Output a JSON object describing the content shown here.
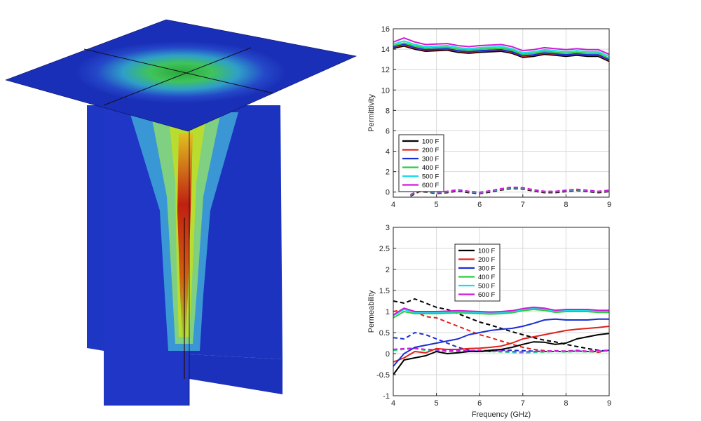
{
  "chart_data": [
    {
      "type": "line",
      "title": "",
      "xlabel": "",
      "ylabel": "Permittivity",
      "xlim": [
        4,
        9
      ],
      "ylim": [
        -0.5,
        16
      ],
      "xticks": [
        4,
        5,
        6,
        7,
        8,
        9
      ],
      "yticks": [
        0,
        2,
        4,
        6,
        8,
        10,
        12,
        14,
        16
      ],
      "grid": true,
      "legend_position": "bottom-left",
      "x": [
        4.0,
        4.25,
        4.5,
        4.75,
        5.0,
        5.25,
        5.5,
        5.75,
        6.0,
        6.25,
        6.5,
        6.75,
        7.0,
        7.25,
        7.5,
        7.75,
        8.0,
        8.25,
        8.5,
        8.75,
        9.0
      ],
      "series": [
        {
          "name": "100 F",
          "color": "#000000",
          "style": "solid",
          "values": [
            14.1,
            14.3,
            14.0,
            13.8,
            13.85,
            13.9,
            13.7,
            13.6,
            13.7,
            13.75,
            13.8,
            13.6,
            13.2,
            13.3,
            13.5,
            13.4,
            13.3,
            13.4,
            13.3,
            13.3,
            12.8
          ]
        },
        {
          "name": "200 F",
          "color": "#e0201b",
          "style": "solid",
          "values": [
            14.2,
            14.4,
            14.1,
            13.9,
            13.95,
            14.0,
            13.8,
            13.7,
            13.8,
            13.85,
            13.9,
            13.7,
            13.3,
            13.4,
            13.6,
            13.5,
            13.4,
            13.5,
            13.4,
            13.4,
            12.9
          ]
        },
        {
          "name": "300 F",
          "color": "#1a2fd1",
          "style": "solid",
          "values": [
            14.25,
            14.5,
            14.15,
            13.95,
            14.0,
            14.05,
            13.85,
            13.75,
            13.85,
            13.9,
            13.95,
            13.75,
            13.35,
            13.45,
            13.65,
            13.55,
            13.45,
            13.55,
            13.45,
            13.45,
            12.95
          ]
        },
        {
          "name": "400 F",
          "color": "#2ecc40",
          "style": "solid",
          "values": [
            14.35,
            14.6,
            14.3,
            14.1,
            14.15,
            14.2,
            14.0,
            13.9,
            14.0,
            14.05,
            14.1,
            13.9,
            13.5,
            13.6,
            13.8,
            13.7,
            13.6,
            13.7,
            13.6,
            13.6,
            13.1
          ]
        },
        {
          "name": "500 F",
          "color": "#14e0e8",
          "style": "solid",
          "values": [
            14.5,
            14.8,
            14.45,
            14.25,
            14.3,
            14.35,
            14.15,
            14.05,
            14.15,
            14.2,
            14.25,
            14.05,
            13.65,
            13.75,
            13.95,
            13.85,
            13.75,
            13.85,
            13.75,
            13.75,
            13.3
          ]
        },
        {
          "name": "600 F",
          "color": "#d11ad6",
          "style": "solid",
          "values": [
            14.7,
            15.1,
            14.7,
            14.45,
            14.5,
            14.55,
            14.35,
            14.25,
            14.35,
            14.4,
            14.45,
            14.25,
            13.85,
            13.95,
            14.15,
            14.05,
            13.95,
            14.05,
            13.95,
            13.95,
            13.5
          ]
        }
      ],
      "imaginary_x": [
        4.4,
        4.6,
        4.8,
        5.0,
        5.25,
        5.5,
        5.75,
        6.0,
        6.25,
        6.5,
        6.75,
        7.0,
        7.25,
        7.5,
        7.75,
        8.0,
        8.25,
        8.5,
        8.75,
        9.0
      ],
      "imaginary_series": [
        {
          "name": "100 F",
          "color": "#000000",
          "style": "dashed",
          "values": [
            -0.4,
            0.05,
            0.0,
            -0.15,
            -0.05,
            0.1,
            -0.05,
            -0.15,
            0.0,
            0.2,
            0.35,
            0.3,
            0.1,
            -0.05,
            -0.05,
            0.05,
            0.15,
            0.05,
            -0.05,
            0.05
          ]
        },
        {
          "name": "200 F",
          "color": "#e0201b",
          "style": "dashed",
          "values": [
            -0.35,
            0.1,
            0.05,
            -0.1,
            0.0,
            0.15,
            0.0,
            -0.1,
            0.05,
            0.25,
            0.4,
            0.35,
            0.15,
            0.0,
            0.0,
            0.1,
            0.2,
            0.1,
            0.0,
            0.1
          ]
        },
        {
          "name": "300 F",
          "color": "#1a2fd1",
          "style": "dashed",
          "values": [
            -0.3,
            0.12,
            0.06,
            -0.08,
            0.02,
            0.17,
            0.02,
            -0.08,
            0.07,
            0.27,
            0.42,
            0.37,
            0.17,
            0.02,
            0.02,
            0.12,
            0.22,
            0.12,
            0.02,
            0.12
          ]
        },
        {
          "name": "400 F",
          "color": "#2ecc40",
          "style": "dashed",
          "values": [
            -0.3,
            0.15,
            0.08,
            -0.06,
            0.04,
            0.19,
            0.04,
            -0.06,
            0.09,
            0.29,
            0.44,
            0.39,
            0.19,
            0.04,
            0.04,
            0.14,
            0.24,
            0.14,
            0.04,
            0.14
          ]
        },
        {
          "name": "500 F",
          "color": "#14e0e8",
          "style": "dashed",
          "values": [
            -0.25,
            0.16,
            0.1,
            -0.04,
            0.06,
            0.21,
            0.06,
            -0.04,
            0.11,
            0.31,
            0.46,
            0.41,
            0.21,
            0.06,
            0.06,
            0.16,
            0.26,
            0.16,
            0.06,
            0.16
          ]
        },
        {
          "name": "600 F",
          "color": "#d11ad6",
          "style": "dashed",
          "values": [
            -0.25,
            0.18,
            0.12,
            -0.02,
            0.08,
            0.23,
            0.08,
            -0.02,
            0.13,
            0.33,
            0.48,
            0.43,
            0.23,
            0.08,
            0.08,
            0.18,
            0.28,
            0.18,
            0.08,
            0.18
          ]
        }
      ]
    },
    {
      "type": "line",
      "title": "",
      "xlabel": "Frequency (GHz)",
      "ylabel": "Permeability",
      "xlim": [
        4,
        9
      ],
      "ylim": [
        -1,
        3
      ],
      "xticks": [
        4,
        5,
        6,
        7,
        8,
        9
      ],
      "yticks": [
        -1,
        -0.5,
        0,
        0.5,
        1,
        1.5,
        2,
        2.5,
        3
      ],
      "grid": true,
      "legend_position": "top-center",
      "x": [
        4.0,
        4.25,
        4.5,
        4.75,
        5.0,
        5.25,
        5.5,
        5.75,
        6.0,
        6.25,
        6.5,
        6.75,
        7.0,
        7.25,
        7.5,
        7.75,
        8.0,
        8.25,
        8.5,
        8.75,
        9.0
      ],
      "series": [
        {
          "name": "100 F",
          "color": "#000000",
          "style": "solid",
          "values": [
            -0.5,
            -0.15,
            -0.1,
            -0.05,
            0.05,
            0.0,
            0.02,
            0.05,
            0.05,
            0.08,
            0.1,
            0.15,
            0.22,
            0.28,
            0.27,
            0.22,
            0.25,
            0.35,
            0.4,
            0.45,
            0.48
          ]
        },
        {
          "name": "200 F",
          "color": "#e0201b",
          "style": "solid",
          "values": [
            -0.2,
            -0.1,
            0.05,
            0.02,
            0.12,
            0.1,
            0.1,
            0.12,
            0.13,
            0.15,
            0.18,
            0.25,
            0.35,
            0.4,
            0.45,
            0.5,
            0.55,
            0.58,
            0.6,
            0.62,
            0.65
          ]
        },
        {
          "name": "300 F",
          "color": "#1a2fd1",
          "style": "solid",
          "values": [
            -0.3,
            0.0,
            0.15,
            0.2,
            0.25,
            0.3,
            0.35,
            0.45,
            0.5,
            0.55,
            0.58,
            0.6,
            0.65,
            0.72,
            0.8,
            0.82,
            0.8,
            0.8,
            0.8,
            0.82,
            0.82
          ]
        },
        {
          "name": "400 F",
          "color": "#2ecc40",
          "style": "solid",
          "values": [
            0.85,
            1.0,
            0.95,
            0.95,
            0.95,
            0.96,
            0.97,
            0.96,
            0.95,
            0.94,
            0.95,
            0.97,
            1.02,
            1.05,
            1.03,
            0.98,
            1.0,
            1.0,
            1.0,
            0.98,
            0.98
          ]
        },
        {
          "name": "500 F",
          "color": "#14e0e8",
          "style": "solid",
          "values": [
            0.9,
            1.05,
            0.98,
            0.98,
            0.98,
            0.99,
            1.0,
            0.99,
            0.98,
            0.97,
            0.98,
            1.0,
            1.05,
            1.08,
            1.06,
            1.01,
            1.03,
            1.03,
            1.03,
            1.01,
            1.01
          ]
        },
        {
          "name": "600 F",
          "color": "#d11ad6",
          "style": "solid",
          "values": [
            0.92,
            1.08,
            1.0,
            1.0,
            1.0,
            1.01,
            1.02,
            1.01,
            1.0,
            0.99,
            1.0,
            1.02,
            1.07,
            1.1,
            1.08,
            1.03,
            1.05,
            1.05,
            1.05,
            1.03,
            1.03
          ]
        }
      ],
      "imaginary_series": [
        {
          "name": "100 F",
          "color": "#000000",
          "style": "dashed",
          "values": [
            1.25,
            1.2,
            1.3,
            1.2,
            1.1,
            1.05,
            0.95,
            0.85,
            0.75,
            0.68,
            0.6,
            0.52,
            0.45,
            0.38,
            0.32,
            0.28,
            0.22,
            0.17,
            0.12,
            0.08,
            0.05
          ]
        },
        {
          "name": "200 F",
          "color": "#e0201b",
          "style": "dashed",
          "values": [
            1.0,
            1.05,
            1.0,
            0.88,
            0.85,
            0.75,
            0.65,
            0.55,
            0.45,
            0.38,
            0.3,
            0.22,
            0.15,
            0.1,
            0.07,
            0.05,
            0.06,
            0.08,
            0.05,
            0.03,
            0.08
          ]
        },
        {
          "name": "300 F",
          "color": "#1a2fd1",
          "style": "dashed",
          "values": [
            0.38,
            0.35,
            0.5,
            0.45,
            0.35,
            0.25,
            0.15,
            0.08,
            0.05,
            0.05,
            0.08,
            0.08,
            0.07,
            0.06,
            0.05,
            0.05,
            0.05,
            0.06,
            0.05,
            0.05,
            0.08
          ]
        },
        {
          "name": "400 F",
          "color": "#2ecc40",
          "style": "dashed",
          "values": [
            0.08,
            0.1,
            0.12,
            0.08,
            0.07,
            0.05,
            0.05,
            0.05,
            0.06,
            0.05,
            0.04,
            0.03,
            0.02,
            0.03,
            0.04,
            0.05,
            0.04,
            0.05,
            0.04,
            0.05,
            0.06
          ]
        },
        {
          "name": "500 F",
          "color": "#14e0e8",
          "style": "dashed",
          "values": [
            0.09,
            0.11,
            0.12,
            0.09,
            0.08,
            0.06,
            0.06,
            0.06,
            0.07,
            0.06,
            0.05,
            0.04,
            0.03,
            0.04,
            0.05,
            0.06,
            0.05,
            0.06,
            0.05,
            0.06,
            0.07
          ]
        },
        {
          "name": "600 F",
          "color": "#d11ad6",
          "style": "dashed",
          "values": [
            0.1,
            0.12,
            0.13,
            0.1,
            0.09,
            0.07,
            0.07,
            0.07,
            0.08,
            0.07,
            0.06,
            0.05,
            0.04,
            0.05,
            0.06,
            0.07,
            0.06,
            0.07,
            0.06,
            0.07,
            0.08
          ]
        }
      ]
    }
  ],
  "scene": {
    "colors": {
      "background_field": "#1a2fb8",
      "field_low": "#2b6fd6",
      "field_mid": "#3fc4a8",
      "field_high": "#9fd63a",
      "field_hot": "#e0c020",
      "field_peak": "#c02010"
    }
  }
}
